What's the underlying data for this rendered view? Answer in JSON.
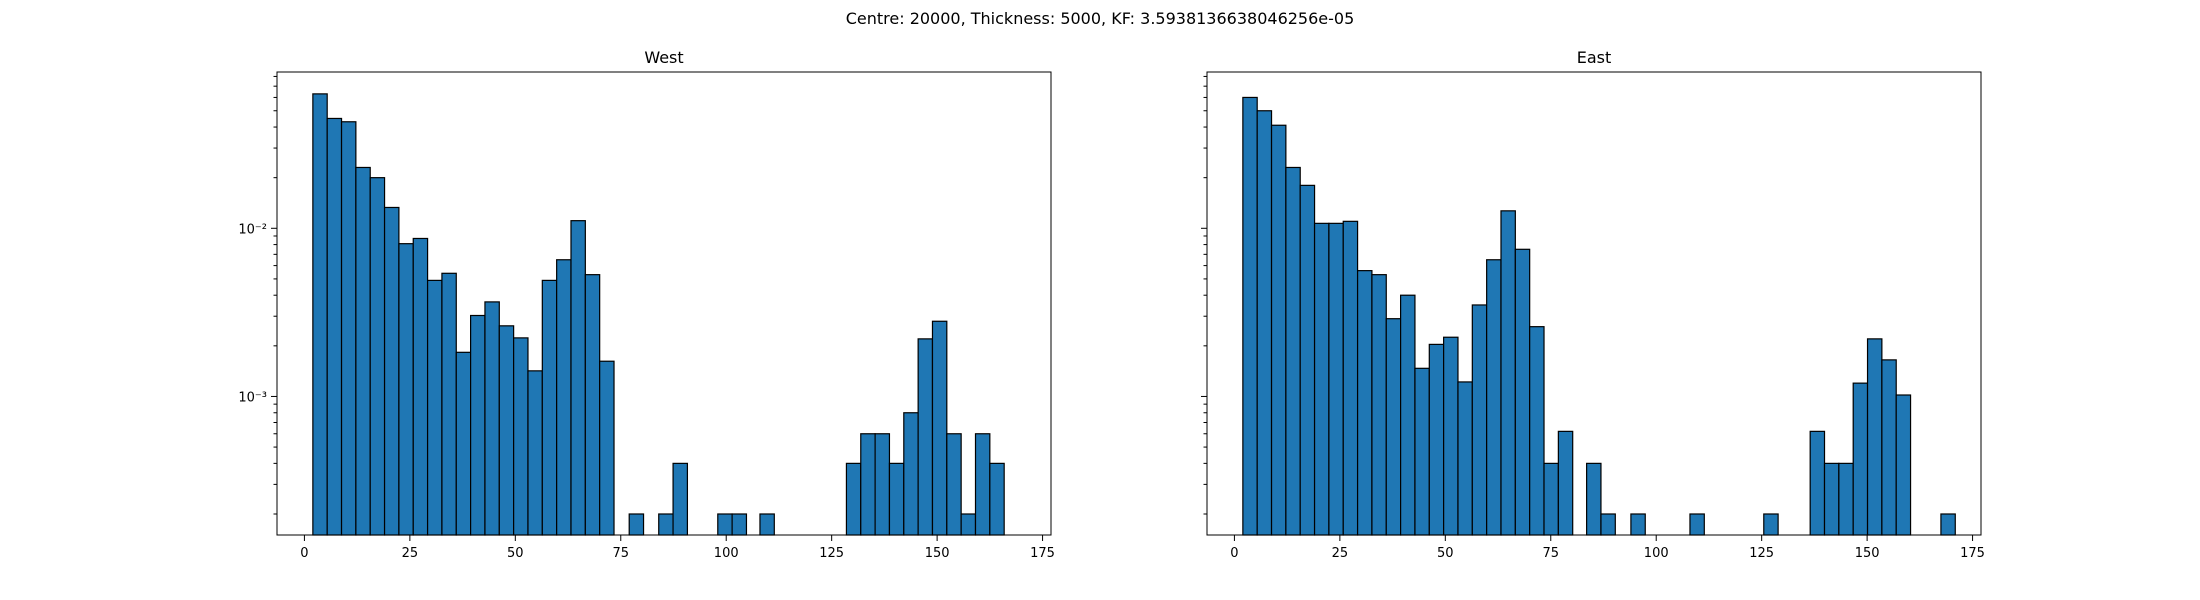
{
  "figure": {
    "suptitle": "Centre: 20000, Thickness: 5000, KF: 3.5938136638046256e-05"
  },
  "chart_data": [
    {
      "type": "bar",
      "title": "West",
      "xlabel": "",
      "ylabel": "",
      "yscale": "log",
      "xlim": [
        -6.5,
        177
      ],
      "ylim": [
        0.00015,
        0.085
      ],
      "xticks": [
        0,
        25,
        50,
        75,
        100,
        125,
        150,
        175
      ],
      "xtick_labels": [
        "0",
        "25",
        "50",
        "75",
        "100",
        "125",
        "150",
        "175"
      ],
      "ytick_values": [
        0.01,
        0.001
      ],
      "ytick_labels": [
        "10⁻²",
        "10⁻³"
      ],
      "bin_width": 3.4,
      "bins": [
        {
          "x": 2.0,
          "y": 0.063
        },
        {
          "x": 5.4,
          "y": 0.045
        },
        {
          "x": 8.8,
          "y": 0.043
        },
        {
          "x": 12.2,
          "y": 0.023
        },
        {
          "x": 15.6,
          "y": 0.02
        },
        {
          "x": 19.0,
          "y": 0.0133
        },
        {
          "x": 22.4,
          "y": 0.0081
        },
        {
          "x": 25.8,
          "y": 0.0087
        },
        {
          "x": 29.2,
          "y": 0.0049
        },
        {
          "x": 32.6,
          "y": 0.0054
        },
        {
          "x": 36.0,
          "y": 0.00183
        },
        {
          "x": 39.4,
          "y": 0.00303
        },
        {
          "x": 42.8,
          "y": 0.00365
        },
        {
          "x": 46.2,
          "y": 0.00263
        },
        {
          "x": 49.6,
          "y": 0.00223
        },
        {
          "x": 53.0,
          "y": 0.00142
        },
        {
          "x": 56.4,
          "y": 0.0049
        },
        {
          "x": 59.8,
          "y": 0.0065
        },
        {
          "x": 63.2,
          "y": 0.0111
        },
        {
          "x": 66.6,
          "y": 0.0053
        },
        {
          "x": 70.0,
          "y": 0.00162
        },
        {
          "x": 77.0,
          "y": 0.0002
        },
        {
          "x": 84.0,
          "y": 0.0002
        },
        {
          "x": 87.4,
          "y": 0.0004
        },
        {
          "x": 98.0,
          "y": 0.0002
        },
        {
          "x": 101.4,
          "y": 0.0002
        },
        {
          "x": 108.0,
          "y": 0.0002
        },
        {
          "x": 128.5,
          "y": 0.0004
        },
        {
          "x": 131.9,
          "y": 0.0006
        },
        {
          "x": 135.3,
          "y": 0.0006
        },
        {
          "x": 138.7,
          "y": 0.0004
        },
        {
          "x": 142.1,
          "y": 0.0008
        },
        {
          "x": 145.5,
          "y": 0.0022
        },
        {
          "x": 148.9,
          "y": 0.0028
        },
        {
          "x": 152.3,
          "y": 0.0006
        },
        {
          "x": 155.7,
          "y": 0.0002
        },
        {
          "x": 159.1,
          "y": 0.0006
        },
        {
          "x": 162.5,
          "y": 0.0004
        }
      ]
    },
    {
      "type": "bar",
      "title": "East",
      "xlabel": "",
      "ylabel": "",
      "yscale": "log",
      "xlim": [
        -6.5,
        177
      ],
      "ylim": [
        0.00015,
        0.085
      ],
      "xticks": [
        0,
        25,
        50,
        75,
        100,
        125,
        150,
        175
      ],
      "xtick_labels": [
        "0",
        "25",
        "50",
        "75",
        "100",
        "125",
        "150",
        "175"
      ],
      "ytick_values": [
        0.01,
        0.001
      ],
      "ytick_labels": [
        "",
        ""
      ],
      "bin_width": 3.4,
      "bins": [
        {
          "x": 2.0,
          "y": 0.06
        },
        {
          "x": 5.4,
          "y": 0.05
        },
        {
          "x": 8.8,
          "y": 0.041
        },
        {
          "x": 12.2,
          "y": 0.023
        },
        {
          "x": 15.6,
          "y": 0.018
        },
        {
          "x": 19.0,
          "y": 0.0107
        },
        {
          "x": 22.4,
          "y": 0.0107
        },
        {
          "x": 25.8,
          "y": 0.011
        },
        {
          "x": 29.2,
          "y": 0.0056
        },
        {
          "x": 32.6,
          "y": 0.0053
        },
        {
          "x": 36.0,
          "y": 0.0029
        },
        {
          "x": 39.4,
          "y": 0.004
        },
        {
          "x": 42.8,
          "y": 0.00147
        },
        {
          "x": 46.2,
          "y": 0.00204
        },
        {
          "x": 49.6,
          "y": 0.00225
        },
        {
          "x": 53.0,
          "y": 0.00122
        },
        {
          "x": 56.4,
          "y": 0.0035
        },
        {
          "x": 59.8,
          "y": 0.0065
        },
        {
          "x": 63.2,
          "y": 0.0127
        },
        {
          "x": 66.6,
          "y": 0.0075
        },
        {
          "x": 70.0,
          "y": 0.0026
        },
        {
          "x": 73.4,
          "y": 0.0004
        },
        {
          "x": 76.8,
          "y": 0.00062
        },
        {
          "x": 83.5,
          "y": 0.0004
        },
        {
          "x": 86.9,
          "y": 0.0002
        },
        {
          "x": 94.0,
          "y": 0.0002
        },
        {
          "x": 108.0,
          "y": 0.0002
        },
        {
          "x": 125.5,
          "y": 0.0002
        },
        {
          "x": 136.5,
          "y": 0.00062
        },
        {
          "x": 139.9,
          "y": 0.0004
        },
        {
          "x": 143.3,
          "y": 0.0004
        },
        {
          "x": 146.7,
          "y": 0.0012
        },
        {
          "x": 150.1,
          "y": 0.0022
        },
        {
          "x": 153.5,
          "y": 0.00165
        },
        {
          "x": 156.9,
          "y": 0.00102
        },
        {
          "x": 167.5,
          "y": 0.0002
        }
      ]
    }
  ]
}
